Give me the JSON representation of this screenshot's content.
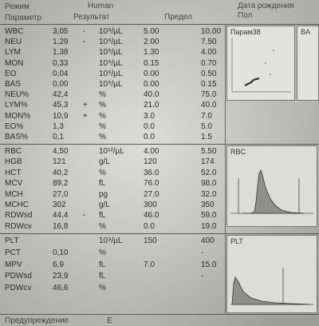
{
  "header": {
    "mode_label": "Режим",
    "mode_value": "Human",
    "param_label": "Параметр",
    "result_label": "Результат",
    "limit_label": "Предел",
    "birthdate_label": "Дата рождения",
    "sex_label": "Пол"
  },
  "section1": [
    {
      "name": "WBC",
      "value": "3,05",
      "flag": "-",
      "unit": "10⁹/µL",
      "lo": "5.00",
      "hi": "10.00"
    },
    {
      "name": "NEU",
      "value": "1,29",
      "flag": "-",
      "unit": "10⁹/µL",
      "lo": "2.00",
      "hi": "7.50"
    },
    {
      "name": "LYM",
      "value": "1,38",
      "flag": "",
      "unit": "10⁹/µL",
      "lo": "1.30",
      "hi": "4.00"
    },
    {
      "name": "MON",
      "value": "0,33",
      "flag": "",
      "unit": "10⁹/µL",
      "lo": "0.15",
      "hi": "0.70"
    },
    {
      "name": "EO",
      "value": "0,04",
      "flag": "",
      "unit": "10⁹/µL",
      "lo": "0.00",
      "hi": "0.50"
    },
    {
      "name": "BAS",
      "value": "0,00",
      "flag": "",
      "unit": "10⁹/µL",
      "lo": "0.00",
      "hi": "0.15"
    },
    {
      "name": "NEU%",
      "value": "42,4",
      "flag": "",
      "unit": "%",
      "lo": "40.0",
      "hi": "75.0"
    },
    {
      "name": "LYM%",
      "value": "45,3",
      "flag": "+",
      "unit": "%",
      "lo": "21.0",
      "hi": "40.0"
    },
    {
      "name": "MON%",
      "value": "10,9",
      "flag": "+",
      "unit": "%",
      "lo": "3.0",
      "hi": "7.0"
    },
    {
      "name": "EO%",
      "value": "1,3",
      "flag": "",
      "unit": "%",
      "lo": "0.0",
      "hi": "5.0"
    },
    {
      "name": "BAS%",
      "value": "0,1",
      "flag": "",
      "unit": "%",
      "lo": "0.0",
      "hi": "1.5"
    }
  ],
  "section2": [
    {
      "name": "RBC",
      "value": "4,50",
      "flag": "",
      "unit": "10¹²/µL",
      "lo": "4.00",
      "hi": "5.50"
    },
    {
      "name": "HGB",
      "value": "121",
      "flag": "",
      "unit": "g/L",
      "lo": "120",
      "hi": "174"
    },
    {
      "name": "HCT",
      "value": "40,2",
      "flag": "",
      "unit": "%",
      "lo": "36.0",
      "hi": "52.0"
    },
    {
      "name": "MCV",
      "value": "89,2",
      "flag": "",
      "unit": "fL",
      "lo": "76.0",
      "hi": "98.0"
    },
    {
      "name": "MCH",
      "value": "27,0",
      "flag": "",
      "unit": "pg",
      "lo": "27.0",
      "hi": "32.0"
    },
    {
      "name": "MCHC",
      "value": "302",
      "flag": "",
      "unit": "g/L",
      "lo": "300",
      "hi": "350"
    },
    {
      "name": "RDWsd",
      "value": "44,4",
      "flag": "-",
      "unit": "fL",
      "lo": "46.0",
      "hi": "59.0"
    },
    {
      "name": "RDWcv",
      "value": "16,8",
      "flag": "",
      "unit": "%",
      "lo": "0.0",
      "hi": "19.0"
    }
  ],
  "section3": [
    {
      "name": "PLT",
      "value": "",
      "flag": "",
      "unit": "10⁹/µL",
      "lo": "150",
      "hi": "400"
    },
    {
      "name": "PCT",
      "value": "0,10",
      "flag": "",
      "unit": "%",
      "lo": "",
      "hi": "-"
    },
    {
      "name": "MPV",
      "value": "6,9",
      "flag": "",
      "unit": "fL",
      "lo": "7.0",
      "hi": "15.0"
    },
    {
      "name": "PDWsd",
      "value": "23,9",
      "flag": "",
      "unit": "fL",
      "lo": "",
      "hi": "-"
    },
    {
      "name": "PDWcv",
      "value": "46,6",
      "flag": "",
      "unit": "%",
      "lo": "",
      "hi": ""
    }
  ],
  "panels": {
    "scatter_title": "Парам38",
    "scatter_side": "BA",
    "rbc_title": "RBC",
    "plt_title": "PLT"
  },
  "footer": {
    "warnings_label": "Предупреждение",
    "warnings_value": "E"
  }
}
